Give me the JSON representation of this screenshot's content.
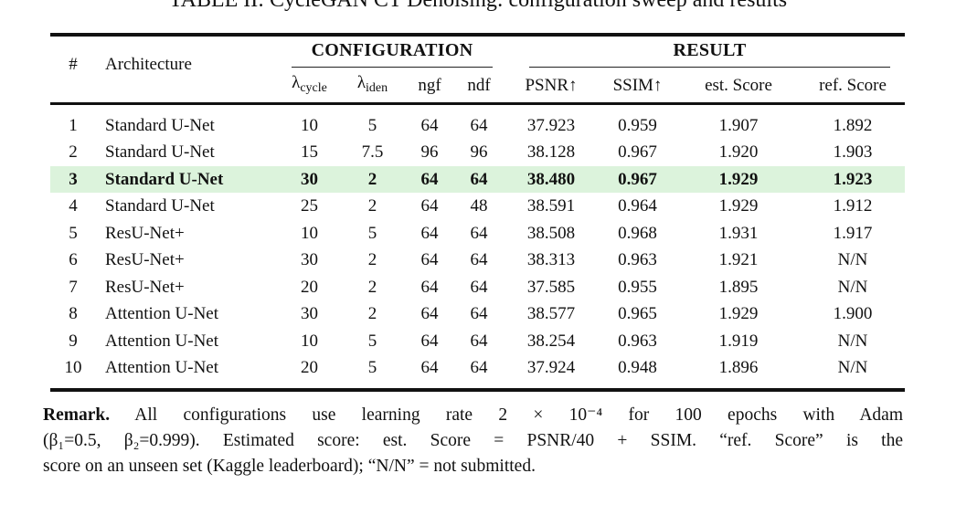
{
  "title": "TABLE II: CycleGAN CT Denoising: configuration sweep and results",
  "colors": {
    "highlight_row": "#dcf3dc",
    "rule": "#111111",
    "text": "#111111",
    "background": "#ffffff"
  },
  "table": {
    "group_headers": {
      "configuration": "CONFIGURATION",
      "result": "RESULT"
    },
    "columns": {
      "num": "#",
      "architecture": "Architecture",
      "lambda_cycle_base": "λ",
      "lambda_cycle_sub": "cycle",
      "lambda_iden_base": "λ",
      "lambda_iden_sub": "iden",
      "ngf": "ngf",
      "ndf": "ndf",
      "psnr": "PSNR↑",
      "ssim": "SSIM↑",
      "est_score": "est. Score",
      "ref_score": "ref. Score"
    },
    "rows": [
      {
        "cells": [
          "1",
          "Standard U-Net",
          "10",
          "5",
          "64",
          "64",
          "37.923",
          "0.959",
          "1.907",
          "1.892"
        ],
        "highlight": false
      },
      {
        "cells": [
          "2",
          "Standard U-Net",
          "15",
          "7.5",
          "96",
          "96",
          "38.128",
          "0.967",
          "1.920",
          "1.903"
        ],
        "highlight": false
      },
      {
        "cells": [
          "3",
          "Standard U-Net",
          "30",
          "2",
          "64",
          "64",
          "38.480",
          "0.967",
          "1.929",
          "1.923"
        ],
        "highlight": true
      },
      {
        "cells": [
          "4",
          "Standard U-Net",
          "25",
          "2",
          "64",
          "48",
          "38.591",
          "0.964",
          "1.929",
          "1.912"
        ],
        "highlight": false
      },
      {
        "cells": [
          "5",
          "ResU-Net+",
          "10",
          "5",
          "64",
          "64",
          "38.508",
          "0.968",
          "1.931",
          "1.917"
        ],
        "highlight": false
      },
      {
        "cells": [
          "6",
          "ResU-Net+",
          "30",
          "2",
          "64",
          "64",
          "38.313",
          "0.963",
          "1.921",
          "N/N"
        ],
        "highlight": false
      },
      {
        "cells": [
          "7",
          "ResU-Net+",
          "20",
          "2",
          "64",
          "64",
          "37.585",
          "0.955",
          "1.895",
          "N/N"
        ],
        "highlight": false
      },
      {
        "cells": [
          "8",
          "Attention U-Net",
          "30",
          "2",
          "64",
          "64",
          "38.577",
          "0.965",
          "1.929",
          "1.900"
        ],
        "highlight": false
      },
      {
        "cells": [
          "9",
          "Attention U-Net",
          "10",
          "5",
          "64",
          "64",
          "38.254",
          "0.963",
          "1.919",
          "N/N"
        ],
        "highlight": false
      },
      {
        "cells": [
          "10",
          "Attention U-Net",
          "20",
          "5",
          "64",
          "64",
          "37.924",
          "0.948",
          "1.896",
          "N/N"
        ],
        "highlight": false
      }
    ]
  },
  "remark": {
    "label": "Remark.",
    "line1": " All configurations use learning rate 2 × 10⁻⁴ for 100 epochs with Adam",
    "line2": "(β₁=0.5, β₂=0.999). Estimated score: est. Score = PSNR/40 + SSIM. “ref. Score” is the",
    "line3": "score on an unseen set (Kaggle leaderboard); “N/N” = not submitted."
  }
}
